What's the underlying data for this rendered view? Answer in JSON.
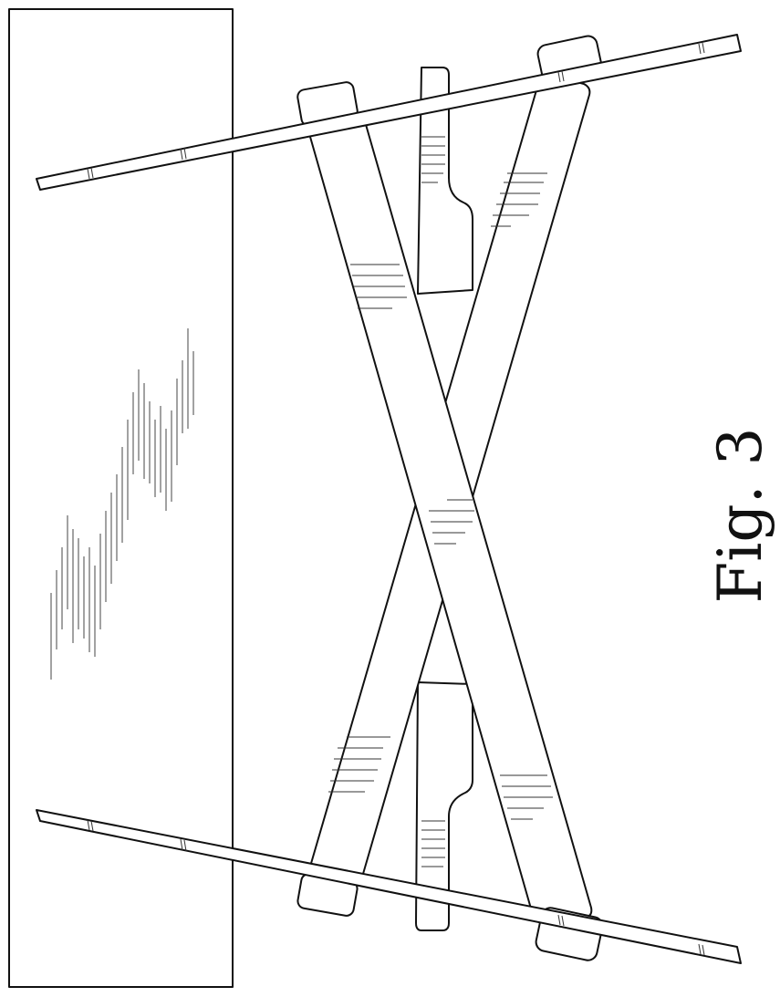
{
  "figure": {
    "caption": "Fig. 3"
  },
  "colors": {
    "line": "#111111",
    "hatch": "#333333",
    "background": "#ffffff"
  }
}
